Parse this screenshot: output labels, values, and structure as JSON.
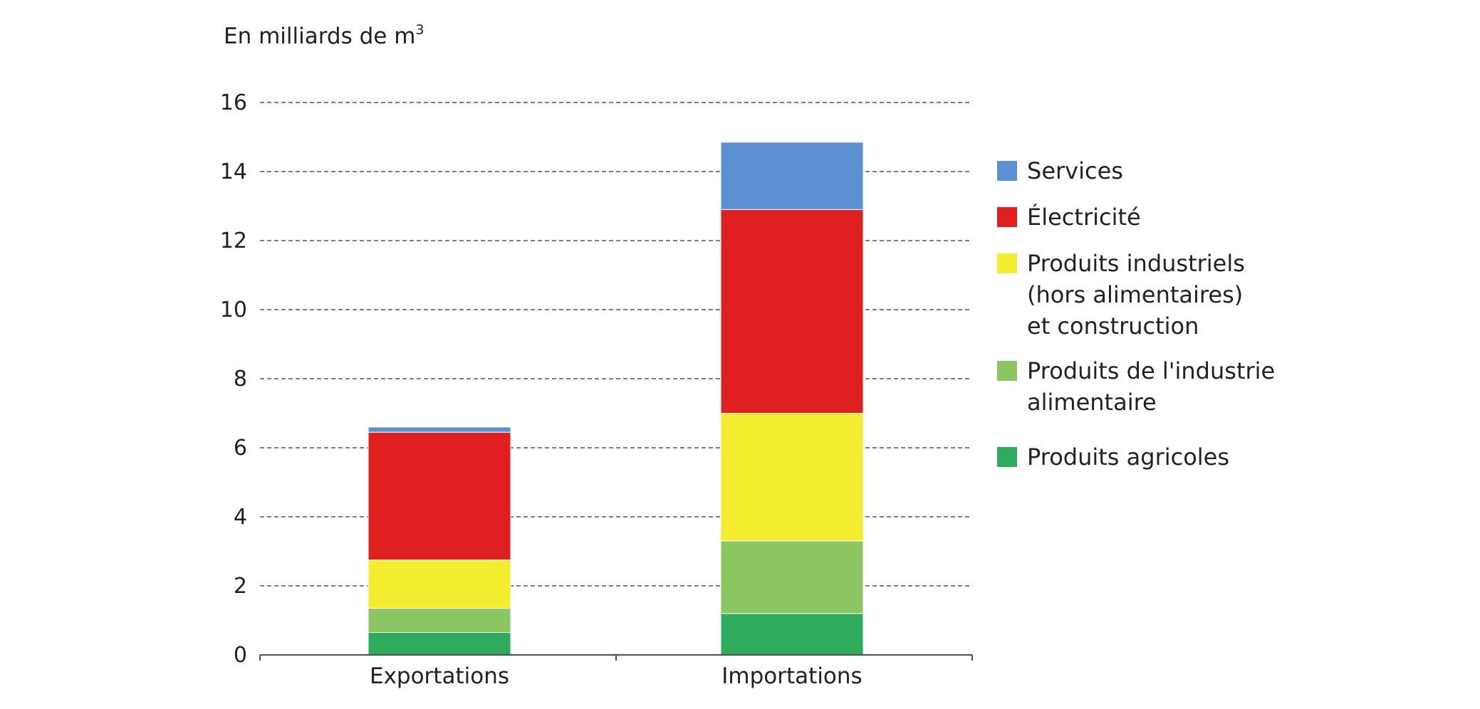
{
  "chart_data": {
    "type": "bar",
    "stacked": true,
    "ylabel": {
      "text": "En milliards de m",
      "superscript": "3"
    },
    "ylim": [
      0,
      16
    ],
    "yticks": [
      0,
      2,
      4,
      6,
      8,
      10,
      12,
      14,
      16
    ],
    "grid": true,
    "legend_position": "right",
    "categories": [
      "Exportations",
      "Importations"
    ],
    "series": [
      {
        "key": "agricoles",
        "color": "#2eab5c",
        "values": [
          0.65,
          1.2
        ]
      },
      {
        "key": "alimentaire",
        "color": "#8cc663",
        "values": [
          0.7,
          2.1
        ]
      },
      {
        "key": "industriels",
        "color": "#f4ec2f",
        "values": [
          1.4,
          3.7
        ]
      },
      {
        "key": "electricite",
        "color": "#e02020",
        "values": [
          3.7,
          5.9
        ]
      },
      {
        "key": "services",
        "color": "#5b91d2",
        "values": [
          0.15,
          1.95
        ]
      }
    ],
    "legend": [
      {
        "key": "services",
        "color": "#5b91d2",
        "lines": [
          "Services"
        ]
      },
      {
        "key": "electricite",
        "color": "#e02020",
        "lines": [
          "Électricité"
        ]
      },
      {
        "key": "industriels",
        "color": "#f4ec2f",
        "lines": [
          "Produits industriels",
          "(hors alimentaires)",
          "et construction"
        ]
      },
      {
        "key": "alimentaire",
        "color": "#8cc663",
        "lines": [
          "Produits de l'industrie",
          "alimentaire"
        ]
      },
      {
        "key": "agricoles",
        "color": "#2eab5c",
        "lines": [
          "Produits agricoles"
        ]
      }
    ]
  }
}
